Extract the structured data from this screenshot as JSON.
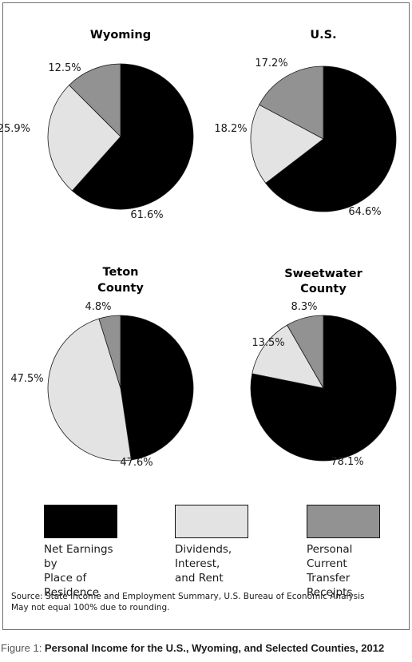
{
  "chart_data": [
    {
      "type": "pie",
      "title": "Wyoming",
      "slices": [
        {
          "label": "Net Earnings by Place of Residence",
          "value": 61.6,
          "display": "61.6%",
          "color": "#000000"
        },
        {
          "label": "Dividends, Interest, and Rent",
          "value": 25.9,
          "display": "25.9%",
          "color": "#e3e3e3"
        },
        {
          "label": "Personal Current Transfer Receipts",
          "value": 12.5,
          "display": "12.5%",
          "color": "#929292"
        }
      ]
    },
    {
      "type": "pie",
      "title": "U.S.",
      "slices": [
        {
          "label": "Net Earnings by Place of Residence",
          "value": 64.6,
          "display": "64.6%",
          "color": "#000000"
        },
        {
          "label": "Dividends, Interest, and Rent",
          "value": 18.2,
          "display": "18.2%",
          "color": "#e3e3e3"
        },
        {
          "label": "Personal Current Transfer Receipts",
          "value": 17.2,
          "display": "17.2%",
          "color": "#929292"
        }
      ]
    },
    {
      "type": "pie",
      "title": "Teton County",
      "slices": [
        {
          "label": "Net Earnings by Place of Residence",
          "value": 47.6,
          "display": "47.6%",
          "color": "#000000"
        },
        {
          "label": "Dividends, Interest, and Rent",
          "value": 47.5,
          "display": "47.5%",
          "color": "#e3e3e3"
        },
        {
          "label": "Personal Current Transfer Receipts",
          "value": 4.8,
          "display": "4.8%",
          "color": "#929292"
        }
      ]
    },
    {
      "type": "pie",
      "title": "Sweetwater County",
      "slices": [
        {
          "label": "Net Earnings by Place of Residence",
          "value": 78.1,
          "display": "78.1%",
          "color": "#000000"
        },
        {
          "label": "Dividends, Interest, and Rent",
          "value": 13.5,
          "display": "13.5%",
          "color": "#e3e3e3"
        },
        {
          "label": "Personal Current Transfer Receipts",
          "value": 8.3,
          "display": "8.3%",
          "color": "#929292"
        }
      ]
    }
  ],
  "legend": [
    {
      "text": "Net Earnings by\nPlace of Residence",
      "color": "#000000"
    },
    {
      "text": "Dividends, Interest,\nand Rent",
      "color": "#e3e3e3"
    },
    {
      "text": "Personal Current\nTransfer Receipts",
      "color": "#929292"
    }
  ],
  "source": {
    "line1": "Source: State Income and Employment Summary, U.S. Bureau of Economic Analysis",
    "line2": "May not equal 100% due to rounding."
  },
  "caption": {
    "prefix": "Figure 1: ",
    "title": "Personal Income for the U.S., Wyoming, and Selected Counties, 2012"
  }
}
